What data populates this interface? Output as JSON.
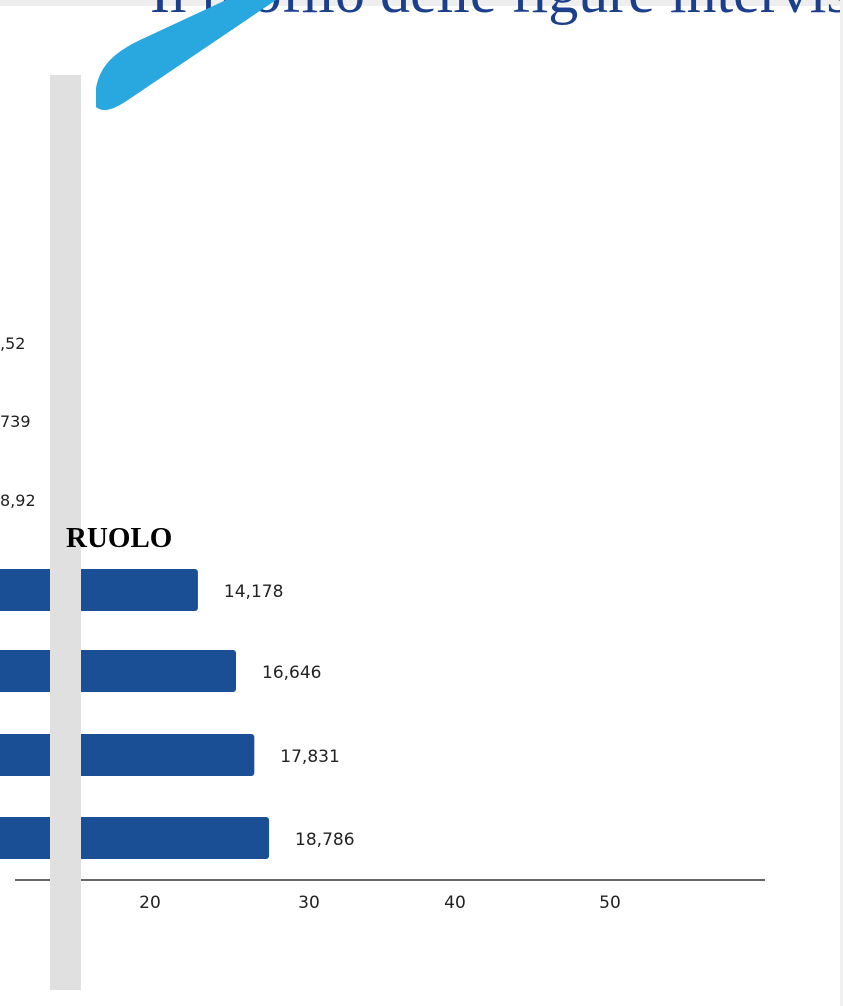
{
  "slide": {
    "title": "Il profilo delle figure intervis",
    "section_label": "RUOLO",
    "colors": {
      "title": "#1c3f8c",
      "accent": "#29a8e0",
      "bar": "#1a4f96",
      "divider": "#e0e0e0"
    }
  },
  "chart_data": {
    "type": "bar",
    "orientation": "horizontal",
    "bar_color": "#1a4f96",
    "upper_labels": [
      ",52",
      "739",
      "8,92"
    ],
    "values": [
      14.178,
      16.646,
      17.831,
      18.786
    ],
    "data_labels": [
      "14,178",
      "16,646",
      "17,831",
      "18,786"
    ],
    "x_ticks": [
      20,
      30,
      40,
      50
    ],
    "x_tick_labels": [
      "20",
      "30",
      "40",
      "50"
    ],
    "xlim": [
      0,
      60
    ],
    "grid": false
  }
}
